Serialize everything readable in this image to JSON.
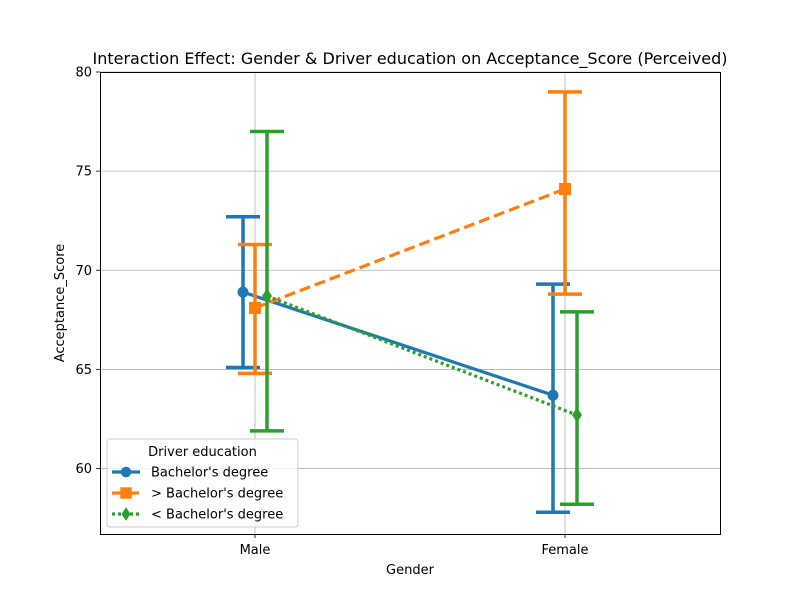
{
  "chart_data": {
    "type": "line",
    "title": "Interaction Effect: Gender & Driver education on Acceptance_Score (Perceived)",
    "xlabel": "Gender",
    "ylabel": "Acceptance_Score",
    "categories": [
      "Male",
      "Female"
    ],
    "ylim": [
      56.7,
      80
    ],
    "yticks": [
      60,
      65,
      70,
      75,
      80
    ],
    "grid": true,
    "legend": {
      "title": "Driver education",
      "placement": "lower-left"
    },
    "series": [
      {
        "name": "Bachelor's degree",
        "color": "#1f77b4",
        "marker": "circle",
        "linestyle": "solid",
        "values": [
          68.9,
          63.7
        ],
        "ci_low": [
          65.1,
          57.8
        ],
        "ci_high": [
          72.7,
          69.3
        ]
      },
      {
        "name": "> Bachelor's degree",
        "color": "#ff7f0e",
        "marker": "square",
        "linestyle": "dashed",
        "values": [
          68.1,
          74.1
        ],
        "ci_low": [
          64.8,
          68.8
        ],
        "ci_high": [
          71.3,
          79.0
        ]
      },
      {
        "name": "< Bachelor's degree",
        "color": "#2ca02c",
        "marker": "diamond",
        "linestyle": "dotted",
        "values": [
          68.7,
          62.7
        ],
        "ci_low": [
          61.9,
          58.2
        ],
        "ci_high": [
          77.0,
          67.9
        ]
      }
    ]
  }
}
